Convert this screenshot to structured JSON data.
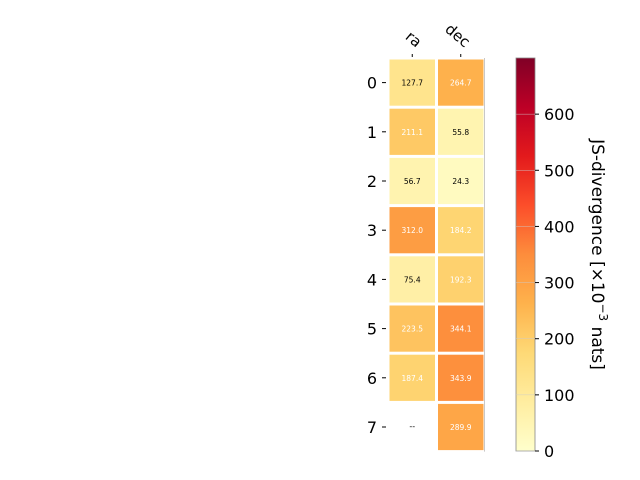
{
  "chart_data": {
    "type": "heatmap",
    "columns": [
      "ra",
      "dec"
    ],
    "rows": [
      "0",
      "1",
      "2",
      "3",
      "4",
      "5",
      "6",
      "7"
    ],
    "values": [
      [
        127.7,
        264.7
      ],
      [
        211.1,
        55.8
      ],
      [
        56.7,
        24.3
      ],
      [
        312.0,
        184.2
      ],
      [
        75.4,
        192.3
      ],
      [
        223.5,
        344.1
      ],
      [
        187.4,
        343.9
      ],
      [
        null,
        289.9
      ]
    ],
    "missing_label": "--",
    "colorbar": {
      "label": "JS-divergence [×10⁻³ nats]",
      "label_main": "JS-divergence [×10",
      "label_exp": "−3",
      "label_tail": " nats]",
      "min": 0,
      "max": 700,
      "ticks": [
        "0",
        "100",
        "200",
        "300",
        "400",
        "500",
        "600"
      ],
      "colormap": "YlOrRd"
    },
    "colors": {
      "cmap_stops": [
        "#ffffcc",
        "#ffeda0",
        "#fed976",
        "#feb24c",
        "#fd8d3c",
        "#fc4e2a",
        "#e31a1c",
        "#bd0026",
        "#800026"
      ],
      "dark_text": "#000000",
      "light_text": "#ffffff",
      "axis": "#000000"
    }
  }
}
